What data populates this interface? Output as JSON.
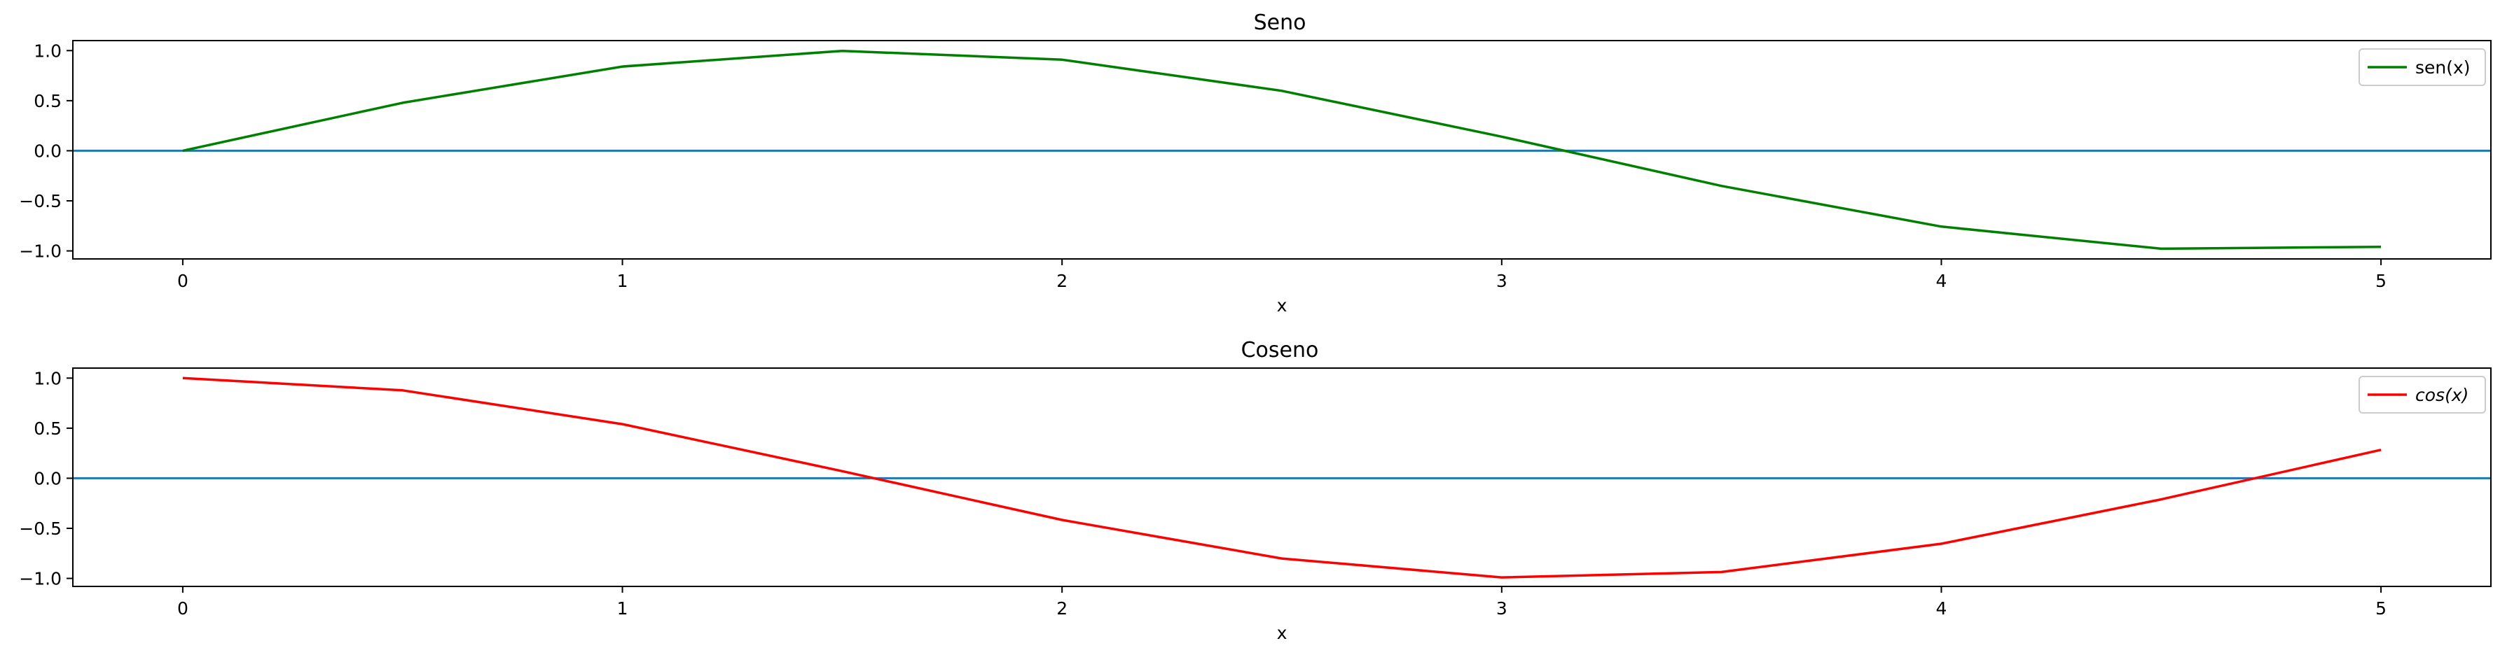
{
  "chart_data": [
    {
      "type": "line",
      "title": "Seno",
      "xlabel": "x",
      "ylabel": "",
      "xlim": [
        -0.25,
        5.25
      ],
      "ylim": [
        -1.08,
        1.1
      ],
      "xticks": [
        0,
        1,
        2,
        3,
        4,
        5
      ],
      "xtick_labels": [
        "0",
        "1",
        "2",
        "3",
        "4",
        "5"
      ],
      "yticks": [
        1.0,
        0.5,
        0.0,
        -0.5,
        -1.0
      ],
      "ytick_labels": [
        "1.0",
        "0.5",
        "0.0",
        "−0.5",
        "−1.0"
      ],
      "grid": false,
      "legend_position": "top-right",
      "reference_line": {
        "y": 0,
        "color": "#1f77b4"
      },
      "series": [
        {
          "name": "sen(x)",
          "color": "#008000",
          "x": [
            0,
            0.5,
            1,
            1.5,
            2,
            2.5,
            3,
            3.5,
            4,
            4.5,
            5
          ],
          "y": [
            0.0,
            0.479,
            0.841,
            0.997,
            0.909,
            0.598,
            0.141,
            -0.351,
            -0.757,
            -0.978,
            -0.959
          ]
        }
      ]
    },
    {
      "type": "line",
      "title": "Coseno",
      "xlabel": "x",
      "ylabel": "",
      "xlim": [
        -0.25,
        5.25
      ],
      "ylim": [
        -1.08,
        1.1
      ],
      "xticks": [
        0,
        1,
        2,
        3,
        4,
        5
      ],
      "xtick_labels": [
        "0",
        "1",
        "2",
        "3",
        "4",
        "5"
      ],
      "yticks": [
        1.0,
        0.5,
        0.0,
        -0.5,
        -1.0
      ],
      "ytick_labels": [
        "1.0",
        "0.5",
        "0.0",
        "−0.5",
        "−1.0"
      ],
      "grid": false,
      "legend_position": "top-right",
      "reference_line": {
        "y": 0,
        "color": "#1f77b4"
      },
      "series": [
        {
          "name": "cos(x)",
          "color": "#ff0000",
          "x": [
            0,
            0.5,
            1,
            1.5,
            2,
            2.5,
            3,
            3.5,
            4,
            4.5,
            5
          ],
          "y": [
            1.0,
            0.878,
            0.54,
            0.071,
            -0.416,
            -0.801,
            -0.99,
            -0.936,
            -0.654,
            -0.211,
            0.284
          ]
        }
      ]
    }
  ]
}
